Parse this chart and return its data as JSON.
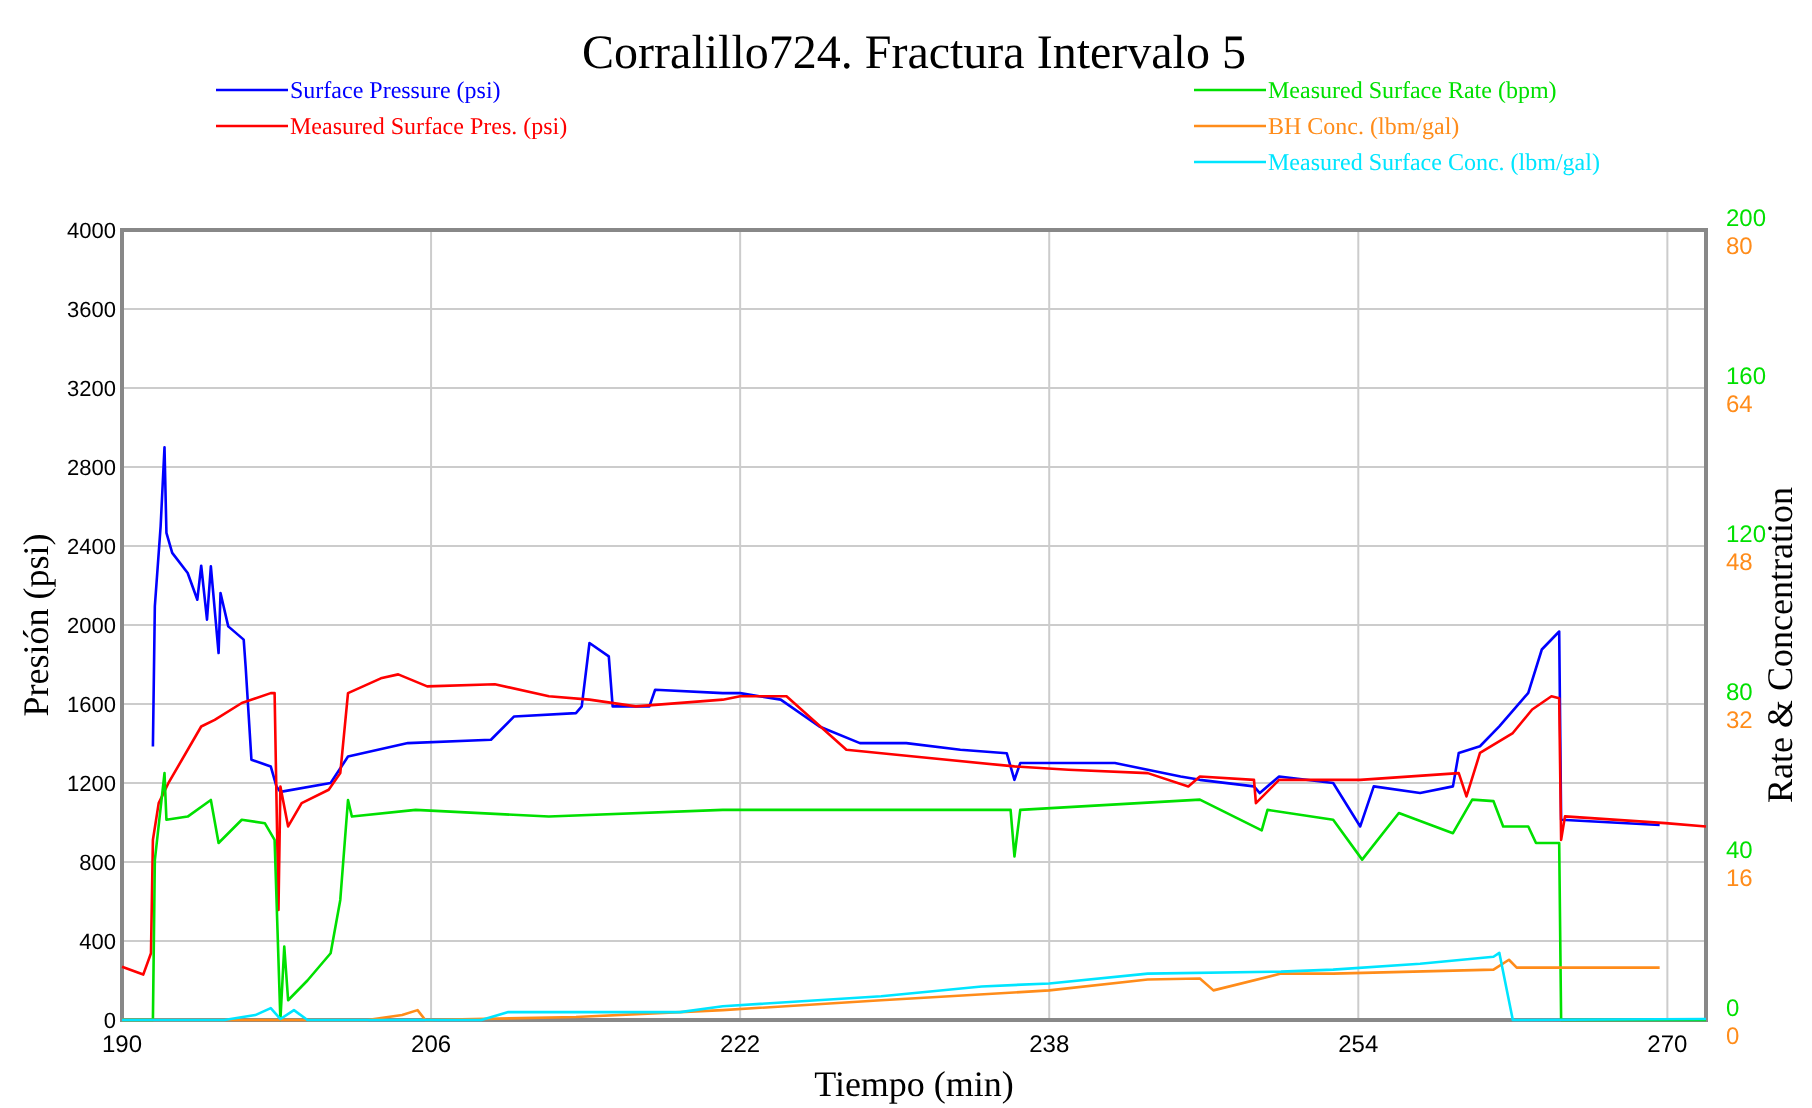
{
  "chart_data": {
    "type": "line",
    "title": "Corralillo724. Fractura Intervalo 5",
    "xlabel": "Tiempo (min)",
    "ylabel": "Presión (psi)",
    "y2label": "Rate & Concentration",
    "xlim": [
      190,
      272
    ],
    "xticks": [
      190,
      206,
      222,
      238,
      254,
      270
    ],
    "ylim": [
      0,
      4000
    ],
    "yticks": [
      0,
      400,
      800,
      1200,
      1600,
      2000,
      2400,
      2800,
      3200,
      3600,
      4000
    ],
    "y2lim": [
      0,
      200
    ],
    "y2ticks": [
      0,
      40,
      80,
      120,
      160,
      200
    ],
    "y3lim": [
      0,
      80
    ],
    "y3ticks": [
      0,
      16,
      32,
      48,
      64,
      80
    ],
    "grid": true,
    "legend": "top",
    "line_style": "solid",
    "marker": "none",
    "series": [
      {
        "name": "Surface Pressure (psi)",
        "color": "#0000ff",
        "x": [
          191.6,
          191.7,
          192.0,
          192.2,
          192.3,
          192.6,
          193.4,
          193.9,
          194.1,
          194.4,
          194.6,
          195.0,
          195.1,
          195.5,
          196.3,
          196.4,
          196.7,
          197.7,
          198.0,
          198.2,
          200.8,
          201.7,
          204.8,
          209.1,
          210.3,
          213.5,
          213.8,
          214.2,
          215.2,
          215.4,
          217.3,
          217.6,
          221.1,
          222.0,
          224.1,
          226.1,
          228.2,
          230.6,
          233.4,
          235.8,
          236.2,
          236.5,
          241.4,
          244.8,
          245.8,
          248.6,
          248.9,
          249.9,
          252.7,
          254.1,
          254.8,
          257.2,
          258.9,
          259.2,
          260.3,
          261.3,
          262.8,
          263.5,
          264.4,
          264.5,
          269.6
        ],
        "values": [
          1385,
          2095,
          2500,
          2900,
          2466,
          2365,
          2263,
          2128,
          2300,
          2027,
          2297,
          1858,
          2162,
          1993,
          1926,
          1790,
          1318,
          1284,
          1182,
          1155,
          1200,
          1334,
          1402,
          1419,
          1537,
          1554,
          1588,
          1909,
          1841,
          1588,
          1588,
          1672,
          1655,
          1655,
          1622,
          1486,
          1402,
          1402,
          1368,
          1351,
          1216,
          1301,
          1301,
          1233,
          1216,
          1183,
          1149,
          1233,
          1200,
          980,
          1183,
          1149,
          1183,
          1352,
          1386,
          1487,
          1656,
          1876,
          1967,
          1014,
          987
        ]
      },
      {
        "name": "Measured Surface Pres. (psi)",
        "color": "#ff0000",
        "x": [
          190.0,
          191.1,
          191.5,
          191.6,
          191.9,
          192.4,
          194.1,
          194.8,
          196.2,
          197.7,
          197.9,
          198.1,
          198.2,
          198.6,
          199.3,
          200.7,
          201.3,
          201.7,
          203.4,
          204.3,
          205.8,
          209.3,
          212.1,
          214.2,
          216.6,
          221.1,
          222.0,
          224.4,
          227.5,
          231.0,
          236.2,
          239.0,
          243.1,
          245.2,
          245.8,
          248.6,
          248.7,
          249.9,
          254.1,
          259.2,
          259.6,
          260.3,
          262.0,
          263.0,
          264.0,
          264.4,
          264.5,
          264.7,
          269.9,
          272.0
        ],
        "values": [
          270,
          230,
          338,
          912,
          1098,
          1199,
          1486,
          1520,
          1605,
          1655,
          1655,
          557,
          1182,
          980,
          1098,
          1166,
          1250,
          1655,
          1730,
          1750,
          1689,
          1700,
          1639,
          1622,
          1588,
          1622,
          1639,
          1639,
          1368,
          1334,
          1284,
          1267,
          1250,
          1182,
          1233,
          1216,
          1098,
          1216,
          1216,
          1250,
          1132,
          1352,
          1453,
          1572,
          1639,
          1629,
          912,
          1031,
          997,
          980
        ]
      },
      {
        "name": "Measured Surface Rate (bpm)",
        "color": "#00e000",
        "axis": "y2",
        "x": [
          190.0,
          191.6,
          191.7,
          192.2,
          192.3,
          193.4,
          194.6,
          195.0,
          196.2,
          197.4,
          197.9,
          198.2,
          198.4,
          198.6,
          199.6,
          200.8,
          201.3,
          201.7,
          201.9,
          205.2,
          212.1,
          221.1,
          229.0,
          236.0,
          236.2,
          236.5,
          245.8,
          249.0,
          249.3,
          252.7,
          254.2,
          256.1,
          258.9,
          259.9,
          261.0,
          261.5,
          262.8,
          263.2,
          264.4,
          264.5,
          272.0
        ],
        "values": [
          0,
          0,
          40.5,
          62.5,
          50.7,
          51.5,
          55.7,
          44.8,
          50.7,
          49.8,
          45.6,
          0,
          18.6,
          5,
          10,
          16.9,
          30.4,
          55.7,
          51.5,
          53.2,
          51.5,
          53.2,
          53.2,
          53.2,
          41.4,
          53.2,
          55.8,
          48,
          53.2,
          50.7,
          40.6,
          52.4,
          47.3,
          55.8,
          55.4,
          49,
          49,
          44.8,
          44.8,
          0,
          0
        ]
      },
      {
        "name": "BH Conc. (lbm/gal)",
        "color": "#ff8c1a",
        "axis": "y3",
        "x": [
          190.0,
          202.7,
          204.5,
          205.3,
          205.7,
          213.5,
          221.1,
          229.3,
          238.0,
          243.1,
          245.8,
          246.5,
          250.0,
          252.7,
          261.0,
          261.8,
          262.2,
          269.6
        ],
        "values": [
          0,
          0,
          0.5,
          1.0,
          0,
          0.3,
          1.0,
          2.0,
          3.0,
          4.1,
          4.2,
          3.0,
          4.7,
          4.7,
          5.1,
          6.1,
          5.3,
          5.3
        ]
      },
      {
        "name": "Measured Surface Conc. (lbm/gal)",
        "color": "#00e5ff",
        "axis": "y3",
        "x": [
          190.0,
          195.3,
          196.9,
          197.7,
          198.2,
          198.9,
          199.6,
          208.6,
          210.0,
          218.9,
          221.1,
          229.3,
          234.5,
          238.0,
          243.1,
          250.0,
          252.7,
          257.2,
          261.0,
          261.3,
          262.0,
          272.0
        ],
        "values": [
          0,
          0,
          0.5,
          1.2,
          0.1,
          1.0,
          0,
          0,
          0.8,
          0.8,
          1.4,
          2.4,
          3.4,
          3.7,
          4.7,
          4.9,
          5.1,
          5.7,
          6.4,
          6.8,
          0,
          0.1
        ]
      }
    ]
  }
}
